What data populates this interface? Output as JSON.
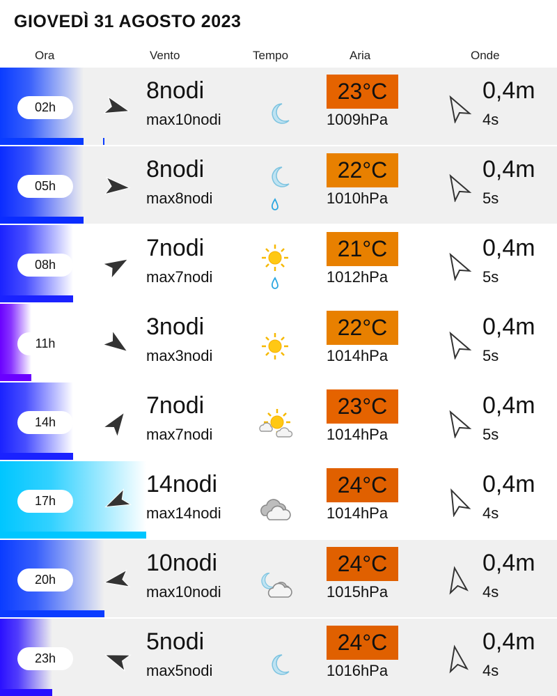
{
  "title": "GIOVEDÌ 31 AGOSTO 2023",
  "headers": {
    "ora": "Ora",
    "vento": "Vento",
    "tempo": "Tempo",
    "aria": "Aria",
    "onde": "Onde"
  },
  "rows": [
    {
      "time": "02h",
      "wind": "8nodi",
      "wind_max": "max10nodi",
      "wind_knots": 8,
      "wind_max_knots": 10,
      "wind_dir_deg": 15,
      "wind_color": "#0a3cff",
      "weather": [
        "moon"
      ],
      "temp": "23°C",
      "temp_color": "#e56300",
      "pressure": "1009hPa",
      "wave": "0,4m",
      "wave_period": "4s",
      "wave_dir_deg": -120,
      "bg": "gray"
    },
    {
      "time": "05h",
      "wind": "8nodi",
      "wind_max": "max8nodi",
      "wind_knots": 8,
      "wind_max_knots": 8,
      "wind_dir_deg": 5,
      "wind_color": "#0a2cff",
      "weather": [
        "moon",
        "drop"
      ],
      "temp": "22°C",
      "temp_color": "#e88000",
      "pressure": "1010hPa",
      "wave": "0,4m",
      "wave_period": "5s",
      "wave_dir_deg": -120,
      "bg": "gray"
    },
    {
      "time": "08h",
      "wind": "7nodi",
      "wind_max": "max7nodi",
      "wind_knots": 7,
      "wind_max_knots": 7,
      "wind_dir_deg": -30,
      "wind_color": "#1a22ff",
      "weather": [
        "sun",
        "drop"
      ],
      "temp": "21°C",
      "temp_color": "#e88000",
      "pressure": "1012hPa",
      "wave": "0,4m",
      "wave_period": "5s",
      "wave_dir_deg": -120,
      "bg": "white"
    },
    {
      "time": "11h",
      "wind": "3nodi",
      "wind_max": "max3nodi",
      "wind_knots": 3,
      "wind_max_knots": 3,
      "wind_dir_deg": 35,
      "wind_color": "#6a00ff",
      "weather": [
        "sun"
      ],
      "temp": "22°C",
      "temp_color": "#e88000",
      "pressure": "1014hPa",
      "wave": "0,4m",
      "wave_period": "5s",
      "wave_dir_deg": -120,
      "bg": "white"
    },
    {
      "time": "14h",
      "wind": "7nodi",
      "wind_max": "max7nodi",
      "wind_knots": 7,
      "wind_max_knots": 7,
      "wind_dir_deg": -55,
      "wind_color": "#1a22ff",
      "weather": [
        "sun-cloud"
      ],
      "temp": "23°C",
      "temp_color": "#e56300",
      "pressure": "1014hPa",
      "wave": "0,4m",
      "wave_period": "5s",
      "wave_dir_deg": -120,
      "bg": "white"
    },
    {
      "time": "17h",
      "wind": "14nodi",
      "wind_max": "max14nodi",
      "wind_knots": 14,
      "wind_max_knots": 14,
      "wind_dir_deg": 155,
      "wind_color": "#00c6ff",
      "weather": [
        "cloud"
      ],
      "temp": "24°C",
      "temp_color": "#e06000",
      "pressure": "1014hPa",
      "wave": "0,4m",
      "wave_period": "4s",
      "wave_dir_deg": -115,
      "bg": "white"
    },
    {
      "time": "20h",
      "wind": "10nodi",
      "wind_max": "max10nodi",
      "wind_knots": 10,
      "wind_max_knots": 10,
      "wind_dir_deg": 170,
      "wind_color": "#0a3cff",
      "weather": [
        "moon-cloud"
      ],
      "temp": "24°C",
      "temp_color": "#e06000",
      "pressure": "1015hPa",
      "wave": "0,4m",
      "wave_period": "4s",
      "wave_dir_deg": -100,
      "bg": "gray"
    },
    {
      "time": "23h",
      "wind": "5nodi",
      "wind_max": "max5nodi",
      "wind_knots": 5,
      "wind_max_knots": 5,
      "wind_dir_deg": -160,
      "wind_color": "#2a10ff",
      "weather": [
        "moon"
      ],
      "temp": "24°C",
      "temp_color": "#e06000",
      "pressure": "1016hPa",
      "wave": "0,4m",
      "wave_period": "4s",
      "wave_dir_deg": -100,
      "bg": "gray"
    }
  ]
}
